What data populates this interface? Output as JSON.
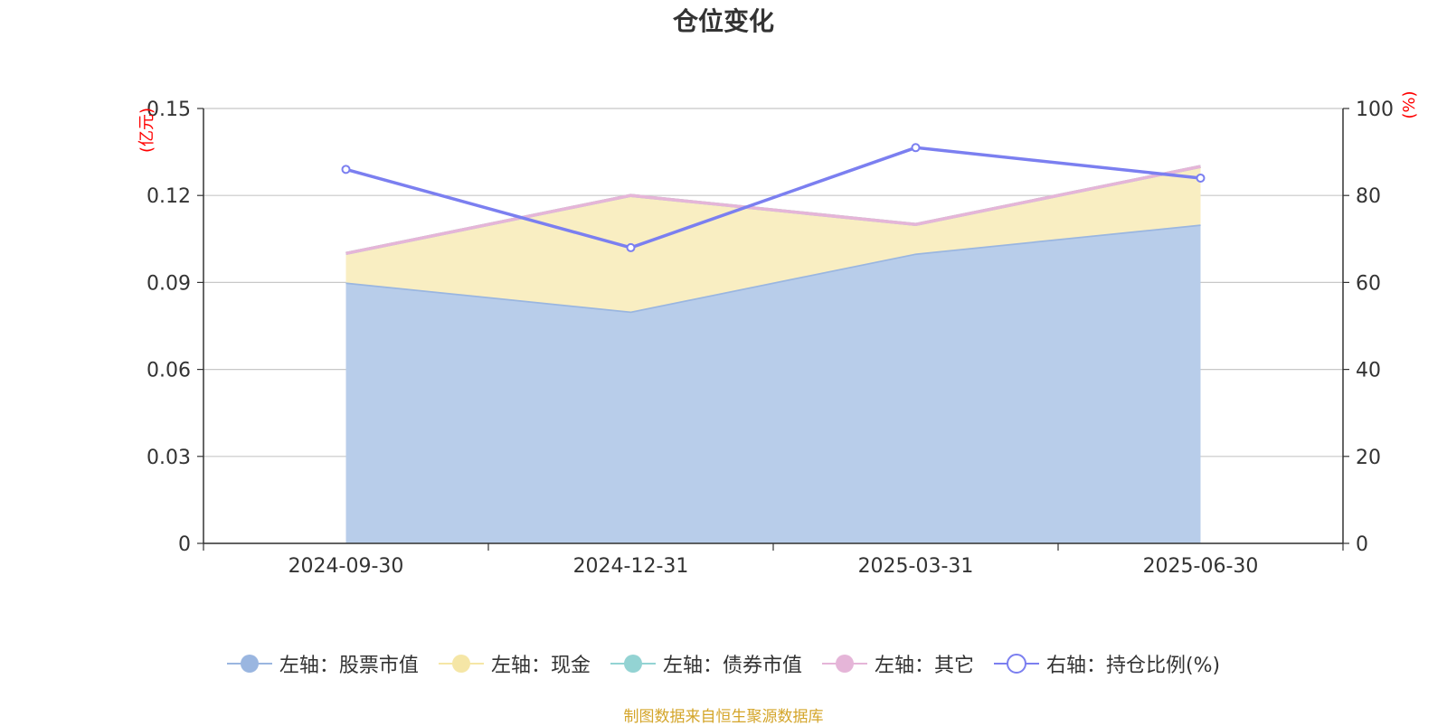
{
  "chart_data": {
    "type": "area",
    "title": "仓位变化",
    "categories": [
      "2024-09-30",
      "2024-12-31",
      "2025-03-31",
      "2025-06-30"
    ],
    "left_axis": {
      "unit": "(亿元)",
      "range": [
        0,
        0.15
      ],
      "ticks": [
        "0",
        "0.03",
        "0.06",
        "0.09",
        "0.12",
        "0.15"
      ]
    },
    "right_axis": {
      "unit": "(%)",
      "range": [
        0,
        100
      ],
      "ticks": [
        "0",
        "20",
        "40",
        "60",
        "80",
        "100"
      ]
    },
    "grid": true,
    "legend_position": "bottom",
    "series": [
      {
        "name": "左轴：股票市值",
        "axis": "left",
        "kind": "stacked-area",
        "color": "#9ab6e0",
        "fill": "#b8cdea",
        "values": [
          0.09,
          0.08,
          0.1,
          0.11
        ]
      },
      {
        "name": "左轴：现金",
        "axis": "left",
        "kind": "stacked-area",
        "color": "#f5e6a6",
        "fill": "#f9eec2",
        "values": [
          0.01,
          0.04,
          0.01,
          0.02
        ]
      },
      {
        "name": "左轴：债券市值",
        "axis": "left",
        "kind": "stacked-area",
        "color": "#93d3d3",
        "fill": "#b5e2e2",
        "values": [
          0,
          0,
          0,
          0
        ]
      },
      {
        "name": "左轴：其它",
        "axis": "left",
        "kind": "stacked-area",
        "color": "#e5b5d8",
        "fill": "#efd0e6",
        "values": [
          0,
          0,
          0,
          0
        ]
      },
      {
        "name": "右轴：持仓比例(%)",
        "axis": "right",
        "kind": "line",
        "color": "#7b7ff0",
        "values": [
          86,
          68,
          91,
          84
        ]
      }
    ]
  },
  "source_note": "制图数据来自恒生聚源数据库"
}
